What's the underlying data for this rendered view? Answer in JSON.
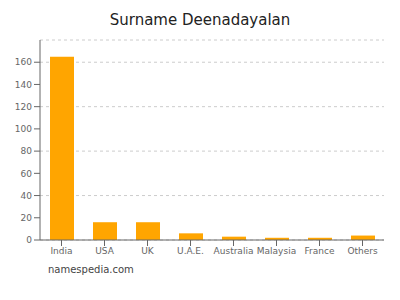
{
  "chart_data": {
    "type": "bar",
    "title": "Surname Deenadayalan",
    "categories": [
      "India",
      "USA",
      "UK",
      "U.A.E.",
      "Australia",
      "Malaysia",
      "France",
      "Others"
    ],
    "values": [
      165,
      16,
      16,
      6,
      3,
      2,
      2,
      4
    ],
    "color": "#FFA500",
    "ylim": [
      0,
      180
    ],
    "yticks": [
      0,
      20,
      40,
      60,
      80,
      100,
      120,
      140,
      160
    ],
    "grid": true,
    "annotations": [
      "namespedia.com"
    ]
  }
}
